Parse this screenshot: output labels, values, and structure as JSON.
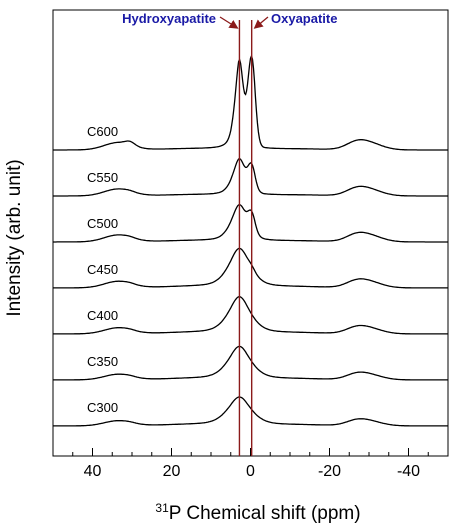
{
  "chart_data": {
    "type": "line",
    "xlabel_sup": "31",
    "xlabel": "P Chemical shift (ppm)",
    "ylabel": "Intensity (arb. unit)",
    "xlim": [
      50,
      -50
    ],
    "x_reversed": true,
    "xticks": [
      40,
      20,
      0,
      -20,
      -40
    ],
    "xtick_labels": [
      "40",
      "20",
      "0",
      "-20",
      "-40"
    ],
    "minor_tick_step": 5,
    "y_ticks_shown": false,
    "reference_lines": [
      {
        "x": 2.8,
        "color": "#8b1a1a"
      },
      {
        "x": -0.3,
        "color": "#8b1a1a"
      }
    ],
    "annotations": [
      {
        "text": "Hydroxyapatite",
        "points_to_x": 2.8,
        "color": "#1a1aa6"
      },
      {
        "text": "Oxyapatite",
        "points_to_x": -0.3,
        "color": "#1a1aa6"
      }
    ],
    "series": [
      {
        "name": "C300",
        "main_height": 0.62,
        "main_width": 3.2,
        "shoulder_height": 0.0,
        "sideband_height": 0.11,
        "sideband_width": 3.5
      },
      {
        "name": "C350",
        "main_height": 0.72,
        "main_width": 3.1,
        "shoulder_height": 0.0,
        "sideband_height": 0.12,
        "sideband_width": 3.5
      },
      {
        "name": "C400",
        "main_height": 0.8,
        "main_width": 3.0,
        "shoulder_height": 0.0,
        "sideband_height": 0.13,
        "sideband_width": 3.5
      },
      {
        "name": "C450",
        "main_height": 0.85,
        "main_width": 2.9,
        "shoulder_height": 0.06,
        "sideband_height": 0.14,
        "sideband_width": 3.5
      },
      {
        "name": "C500",
        "main_height": 0.8,
        "main_width": 2.2,
        "shoulder_height": 0.38,
        "sideband_height": 0.15,
        "sideband_width": 3.5
      },
      {
        "name": "C550",
        "main_height": 0.8,
        "main_width": 1.8,
        "shoulder_height": 0.5,
        "sideband_height": 0.15,
        "sideband_width": 3.5
      },
      {
        "name": "C600",
        "main_height": 1.95,
        "main_width": 1.2,
        "shoulder_height": 1.85,
        "sideband_height": 0.16,
        "sideband_width": 3.5
      }
    ]
  }
}
